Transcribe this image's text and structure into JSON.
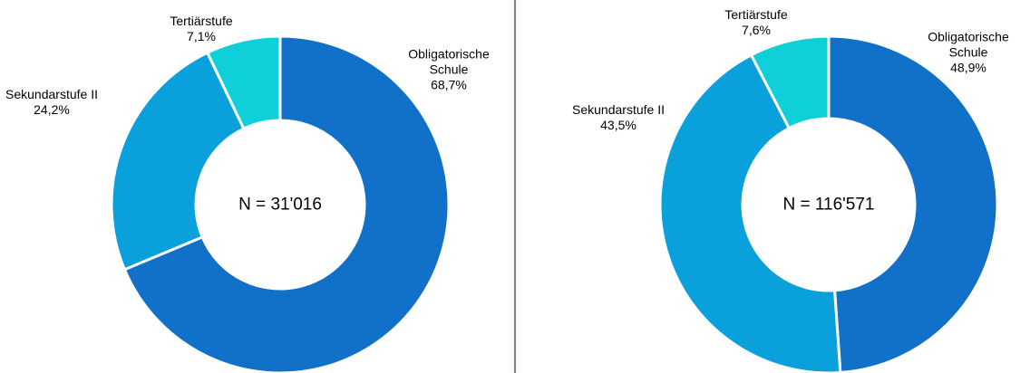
{
  "chart_data": [
    {
      "type": "donut",
      "annotation": "N = 31'016",
      "categories": [
        "Obligatorische Schule",
        "Sekundarstufe II",
        "Tertiärstufe"
      ],
      "values": [
        68.7,
        24.2,
        7.1
      ],
      "value_labels": [
        "68,7%",
        "24,2%",
        "7,1%"
      ],
      "colors": [
        "#1170c8",
        "#0aa0dc",
        "#0fd0d8"
      ]
    },
    {
      "type": "donut",
      "annotation": "N = 116'571",
      "categories": [
        "Obligatorische Schule",
        "Sekundarstufe II",
        "Tertiärstufe"
      ],
      "values": [
        48.9,
        43.5,
        7.6
      ],
      "value_labels": [
        "48,9%",
        "43,5%",
        "7,6%"
      ],
      "colors": [
        "#1170c8",
        "#0aa0dc",
        "#0fd0d8"
      ]
    }
  ]
}
